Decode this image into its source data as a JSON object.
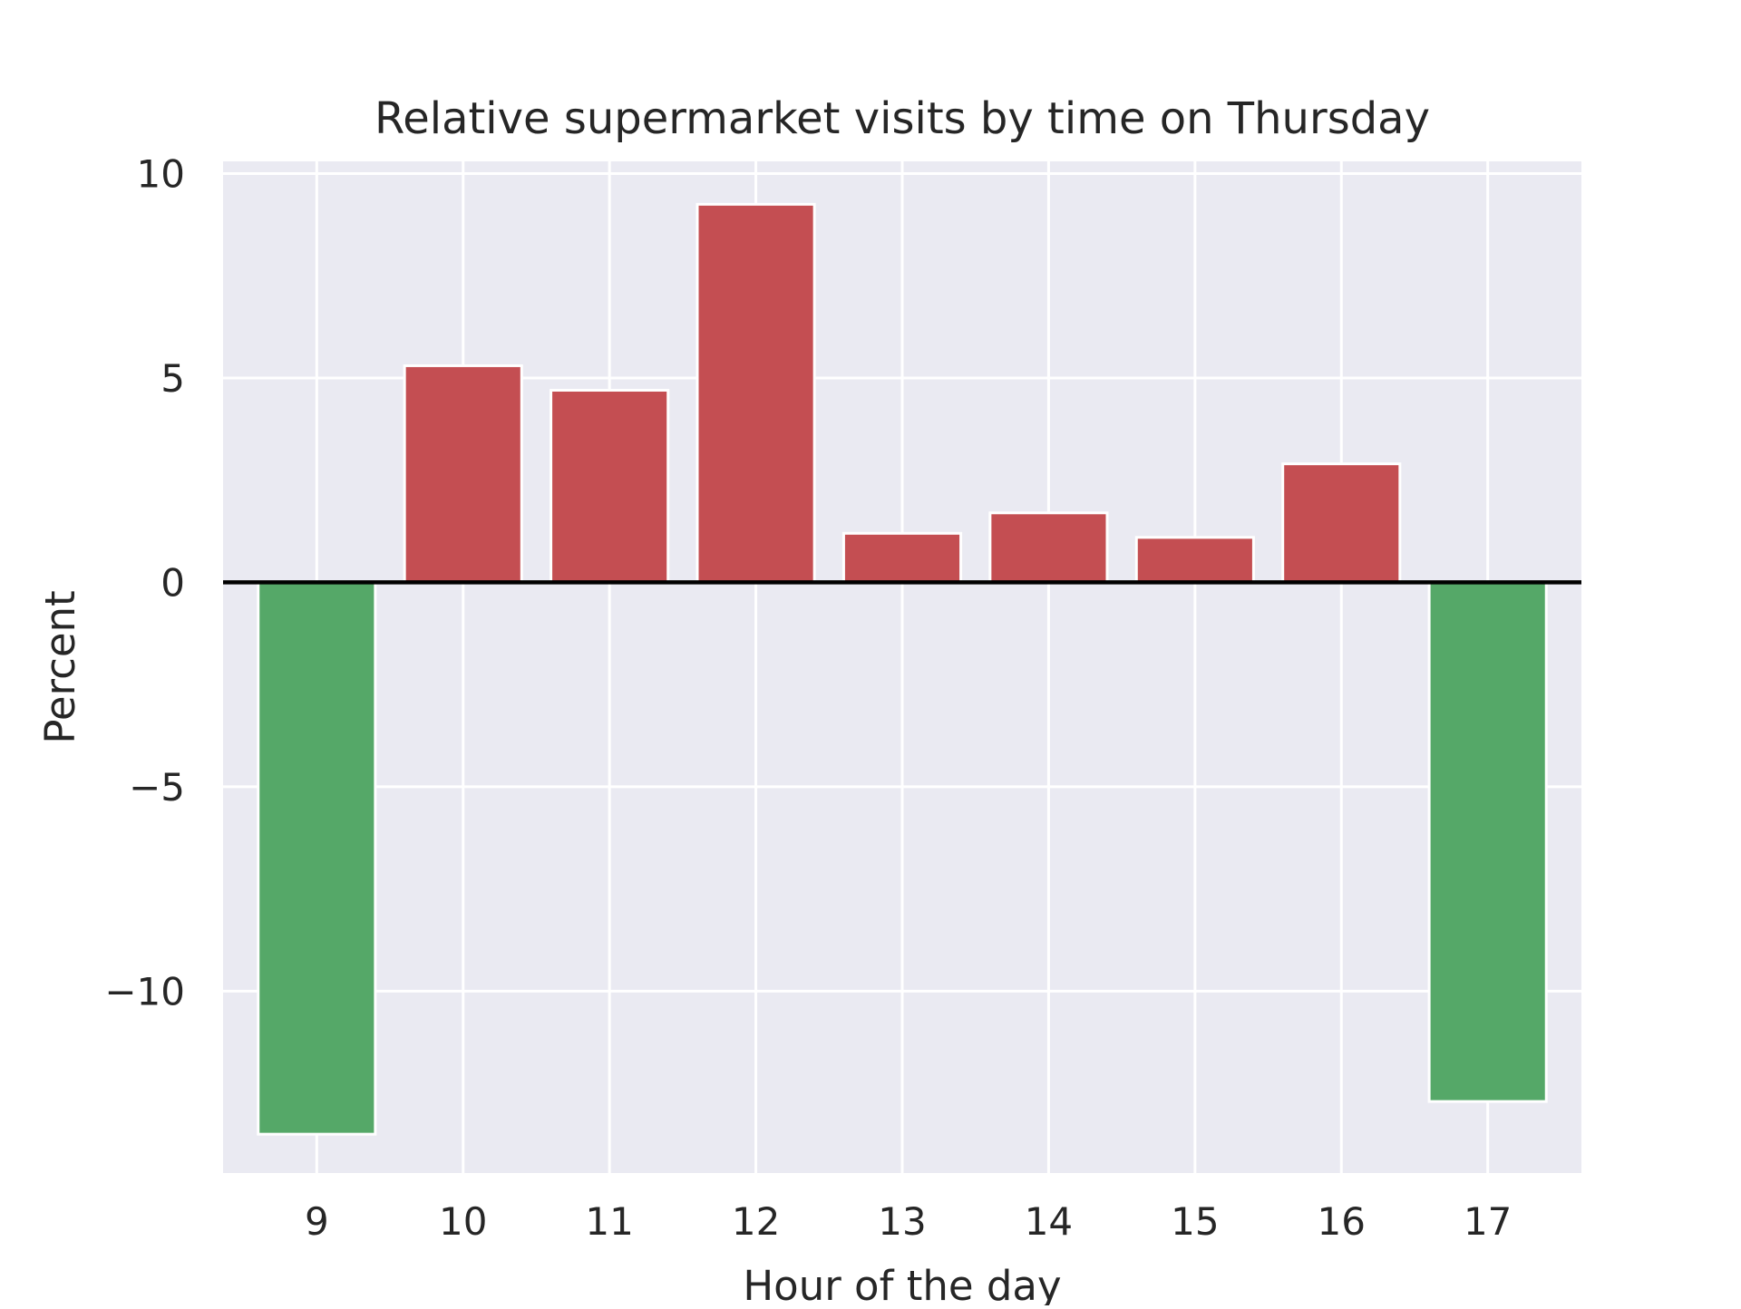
{
  "chart_data": {
    "type": "bar",
    "title": "Relative supermarket visits by time on Thursday",
    "xlabel": "Hour of the day",
    "ylabel": "Percent",
    "categories": [
      "9",
      "10",
      "11",
      "12",
      "13",
      "14",
      "15",
      "16",
      "17"
    ],
    "values": [
      -13.5,
      5.3,
      4.7,
      9.25,
      1.2,
      1.7,
      1.1,
      2.9,
      -12.7
    ],
    "ylim": [
      -14.45,
      10.3
    ],
    "yticks": [
      10,
      5,
      0,
      -5,
      -10
    ],
    "ytick_labels": [
      "10",
      "5",
      "0",
      "−5",
      "−10"
    ],
    "grid": true,
    "zero_line": true,
    "colors": {
      "positive": "#c44e52",
      "negative": "#55a868",
      "plot_background": "#eaeaf2",
      "grid": "#ffffff",
      "zero_line": "#000000",
      "text": "#262626"
    }
  }
}
